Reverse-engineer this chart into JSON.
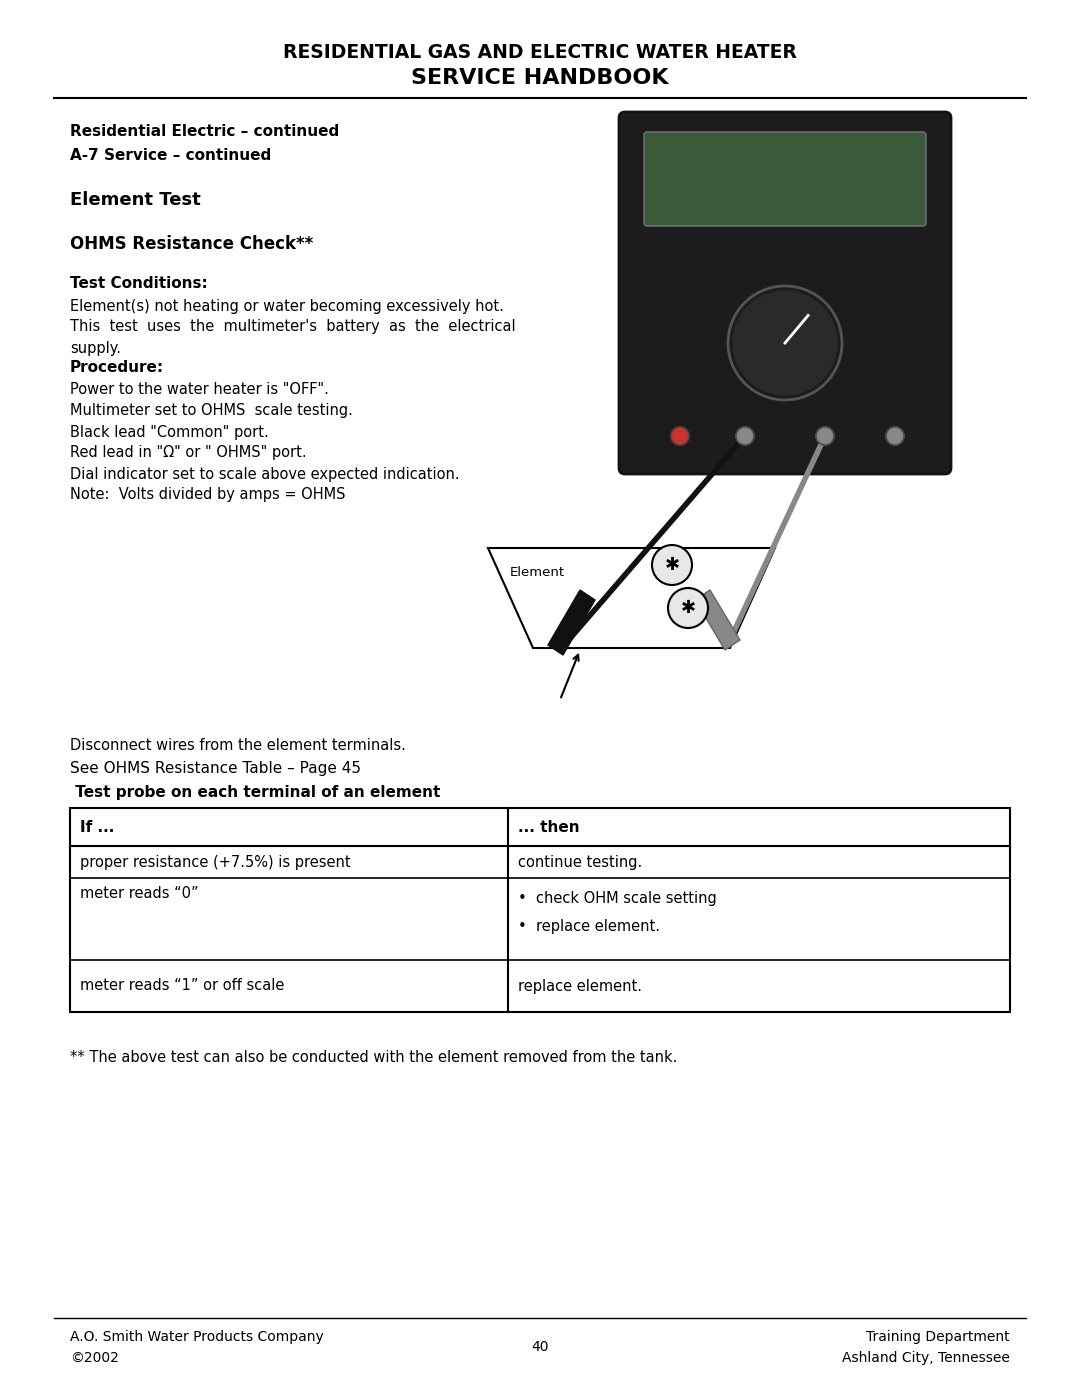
{
  "title_line1": "RESIDENTIAL GAS AND ELECTRIC WATER HEATER",
  "title_line2": "SERVICE HANDBOOK",
  "subtitle1": "Residential Electric – continued",
  "subtitle2": "A-7 Service – continued",
  "section_title": "Element Test",
  "ohms_title": "OHMS Resistance Check**",
  "test_conditions_label": "Test Conditions:",
  "test_conditions_lines": [
    "Element(s) not heating or water becoming excessively hot.",
    "This  test  uses  the  multimeter's  battery  as  the  electrical",
    "supply."
  ],
  "procedure_label": "Procedure:",
  "procedure_lines": [
    "Power to the water heater is \"OFF\".",
    "Multimeter set to OHMS  scale testing.",
    "Black lead \"Common\" port.",
    "Red lead in \"Ω\" or \" OHMS\" port.",
    "Dial indicator set to scale above expected indication.",
    "Note:  Volts divided by amps = OHMS"
  ],
  "disconnect_line1": "Disconnect wires from the element terminals.",
  "disconnect_line2": "See OHMS Resistance Table – Page 45",
  "probe_text": " Test probe on each terminal of an element",
  "table_header": [
    "If ...",
    "... then"
  ],
  "table_rows": [
    [
      "proper resistance (+7.5%) is present",
      "continue testing."
    ],
    [
      "meter reads “0”",
      "•  check OHM scale setting\n•  replace element."
    ],
    [
      "meter reads “1” or off scale",
      "replace element."
    ]
  ],
  "footnote": "** The above test can also be conducted with the element removed from the tank.",
  "footer_left1": "A.O. Smith Water Products Company",
  "footer_left2": "©2002",
  "footer_center": "40",
  "footer_right1": "Training Department",
  "footer_right2": "Ashland City, Tennessee",
  "bg_color": "#ffffff",
  "text_color": "#000000"
}
